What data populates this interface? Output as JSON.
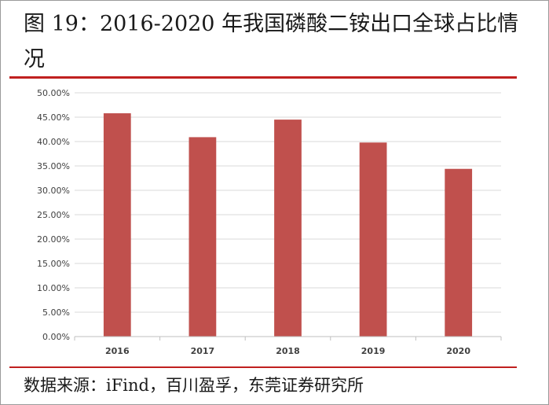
{
  "title": "图 19：2016-2020 年我国磷酸二铵出口全球占比情况",
  "source": "数据来源：iFind，百川盈孚，东莞证券研究所",
  "colors": {
    "bar": "#c0504d",
    "rule": "#c0201f"
  },
  "chart_data": {
    "type": "bar",
    "title": "",
    "xlabel": "",
    "ylabel": "",
    "categories": [
      "2016",
      "2017",
      "2018",
      "2019",
      "2020"
    ],
    "values": [
      45.8,
      40.9,
      44.5,
      39.8,
      34.4
    ],
    "unit": "%",
    "ylim": [
      0,
      50
    ],
    "ytick_step": 5,
    "ytick_labels": [
      "0.00%",
      "5.00%",
      "10.00%",
      "15.00%",
      "20.00%",
      "25.00%",
      "30.00%",
      "35.00%",
      "40.00%",
      "45.00%",
      "50.00%"
    ],
    "grid": true,
    "legend": "none"
  }
}
